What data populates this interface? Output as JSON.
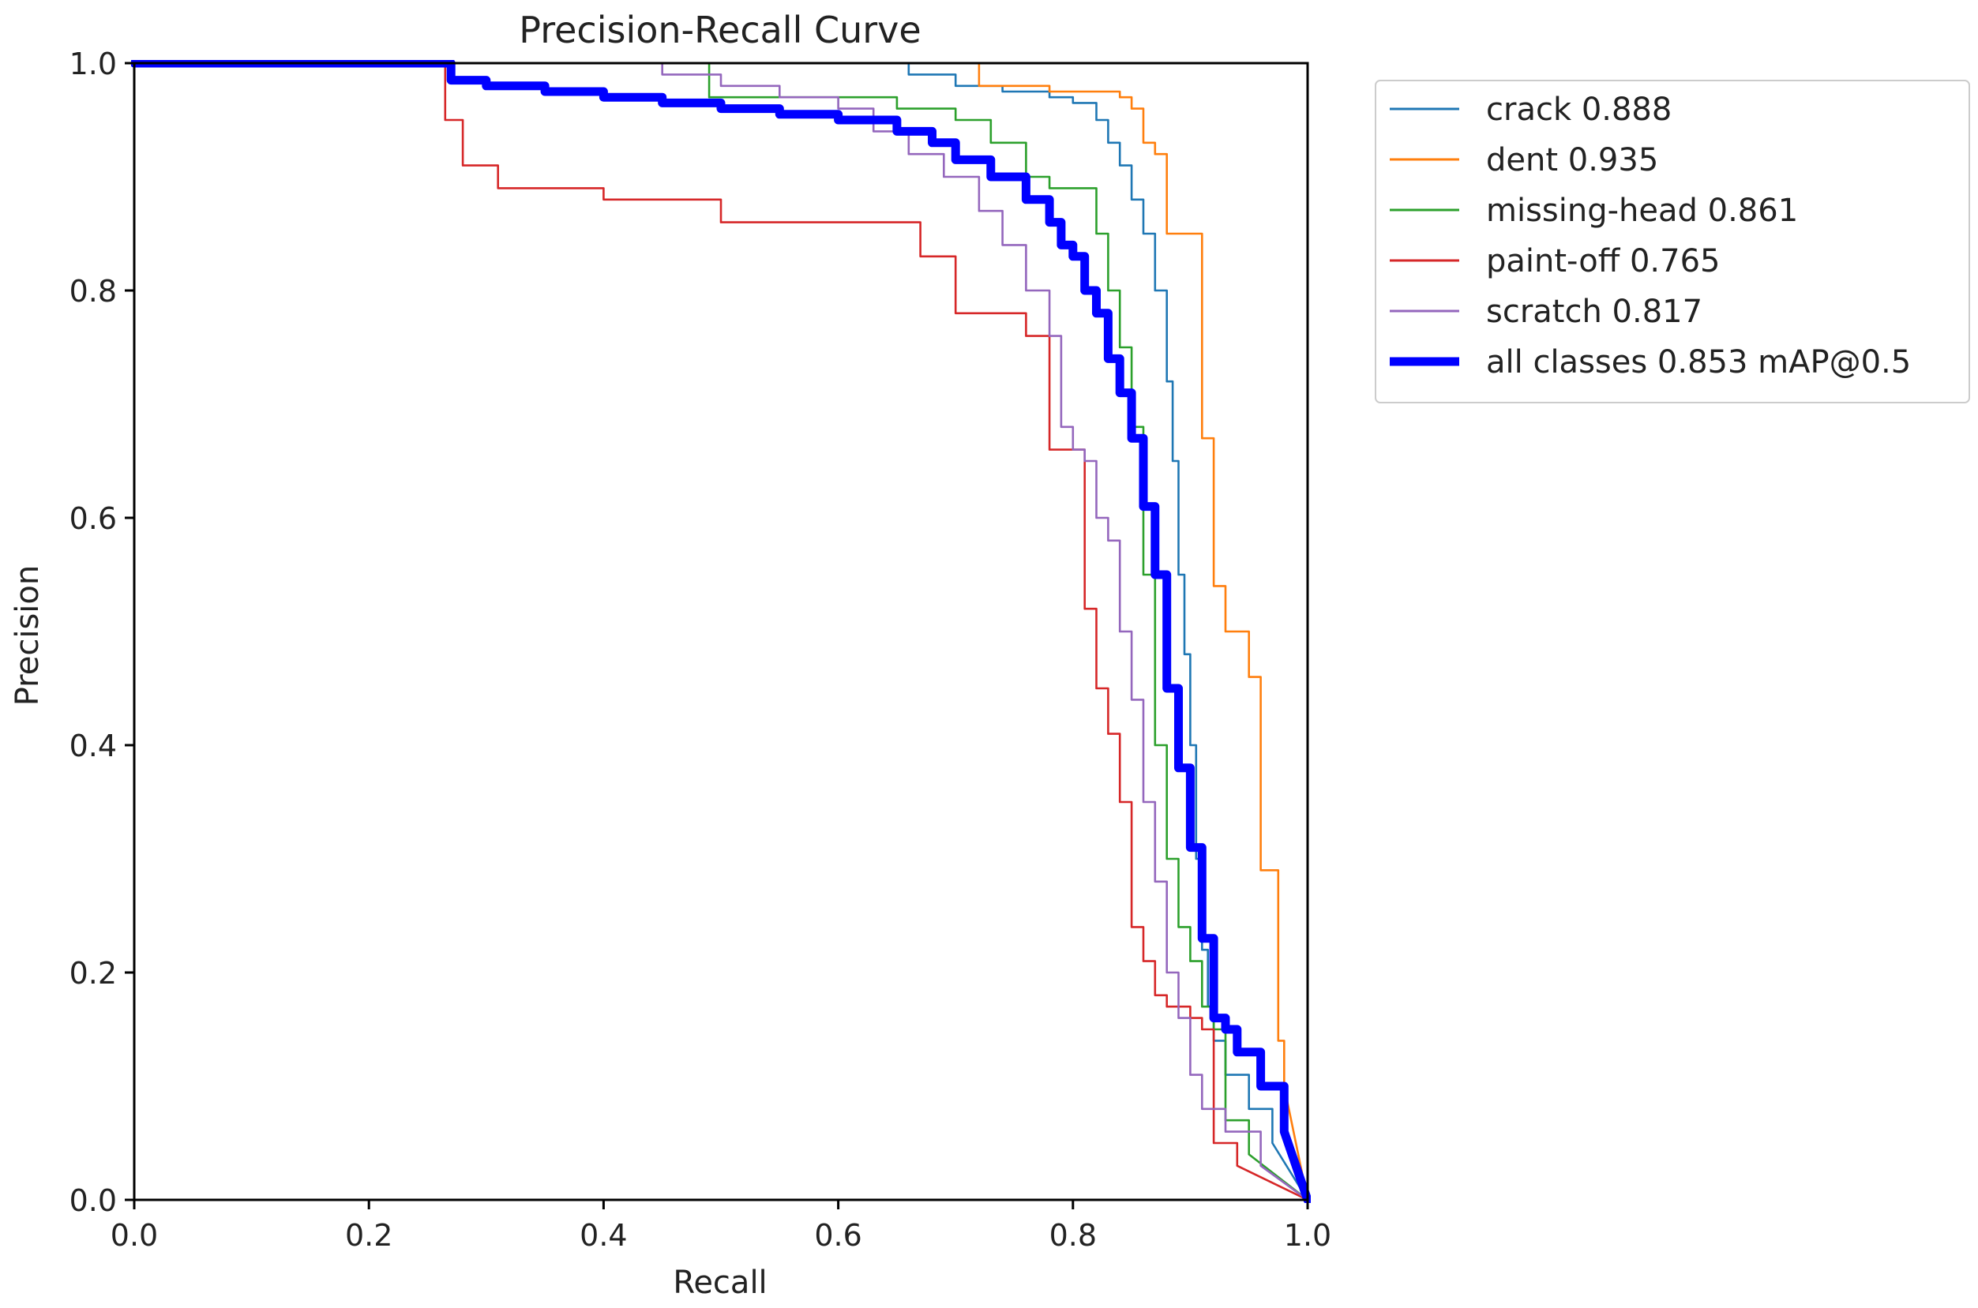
{
  "chart_data": {
    "type": "line",
    "title": "Precision-Recall Curve",
    "xlabel": "Recall",
    "ylabel": "Precision",
    "xlim": [
      0,
      1
    ],
    "ylim": [
      0,
      1
    ],
    "xticks": [
      "0.0",
      "0.2",
      "0.4",
      "0.6",
      "0.8",
      "1.0"
    ],
    "yticks": [
      "0.0",
      "0.2",
      "0.4",
      "0.6",
      "0.8",
      "1.0"
    ],
    "grid": false,
    "legend_position": "outside-top-right",
    "series": [
      {
        "name": "crack",
        "score": "0.888",
        "legend_label": "crack 0.888",
        "color": "#1f77b4",
        "bold": false,
        "x": [
          0.0,
          0.2,
          0.4,
          0.6,
          0.66,
          0.7,
          0.74,
          0.78,
          0.8,
          0.82,
          0.83,
          0.84,
          0.85,
          0.86,
          0.87,
          0.88,
          0.885,
          0.89,
          0.895,
          0.9,
          0.905,
          0.91,
          0.915,
          0.92,
          0.93,
          0.95,
          0.97,
          1.0
        ],
        "y": [
          1.0,
          1.0,
          1.0,
          1.0,
          0.99,
          0.98,
          0.975,
          0.97,
          0.965,
          0.95,
          0.93,
          0.91,
          0.88,
          0.85,
          0.8,
          0.72,
          0.65,
          0.55,
          0.48,
          0.4,
          0.3,
          0.22,
          0.17,
          0.14,
          0.11,
          0.08,
          0.05,
          0.0
        ]
      },
      {
        "name": "dent",
        "score": "0.935",
        "legend_label": "dent 0.935",
        "color": "#ff7f0e",
        "bold": false,
        "x": [
          0.0,
          0.2,
          0.4,
          0.6,
          0.66,
          0.72,
          0.78,
          0.84,
          0.85,
          0.86,
          0.87,
          0.88,
          0.9,
          0.91,
          0.92,
          0.93,
          0.94,
          0.95,
          0.96,
          0.97,
          0.975,
          0.98,
          1.0
        ],
        "y": [
          1.0,
          1.0,
          1.0,
          1.0,
          1.0,
          0.98,
          0.975,
          0.97,
          0.96,
          0.93,
          0.92,
          0.85,
          0.85,
          0.67,
          0.54,
          0.5,
          0.5,
          0.46,
          0.29,
          0.29,
          0.14,
          0.1,
          0.0
        ]
      },
      {
        "name": "missing-head",
        "score": "0.861",
        "legend_label": "missing-head 0.861",
        "color": "#2ca02c",
        "bold": false,
        "x": [
          0.0,
          0.2,
          0.4,
          0.48,
          0.49,
          0.55,
          0.6,
          0.65,
          0.7,
          0.73,
          0.76,
          0.78,
          0.8,
          0.82,
          0.83,
          0.84,
          0.85,
          0.86,
          0.87,
          0.88,
          0.89,
          0.9,
          0.91,
          0.92,
          0.93,
          0.95,
          1.0
        ],
        "y": [
          1.0,
          1.0,
          1.0,
          1.0,
          0.97,
          0.97,
          0.97,
          0.96,
          0.95,
          0.93,
          0.9,
          0.89,
          0.89,
          0.85,
          0.8,
          0.75,
          0.68,
          0.55,
          0.4,
          0.3,
          0.24,
          0.21,
          0.17,
          0.15,
          0.07,
          0.04,
          0.0
        ]
      },
      {
        "name": "paint-off",
        "score": "0.765",
        "legend_label": "paint-off 0.765",
        "color": "#d62728",
        "bold": false,
        "x": [
          0.0,
          0.2,
          0.26,
          0.265,
          0.28,
          0.31,
          0.36,
          0.4,
          0.47,
          0.5,
          0.6,
          0.67,
          0.7,
          0.73,
          0.76,
          0.78,
          0.79,
          0.81,
          0.82,
          0.83,
          0.84,
          0.85,
          0.86,
          0.87,
          0.88,
          0.89,
          0.9,
          0.91,
          0.92,
          0.94,
          1.0
        ],
        "y": [
          1.0,
          1.0,
          1.0,
          0.95,
          0.91,
          0.89,
          0.89,
          0.88,
          0.88,
          0.86,
          0.86,
          0.83,
          0.78,
          0.78,
          0.76,
          0.66,
          0.66,
          0.52,
          0.45,
          0.41,
          0.35,
          0.24,
          0.21,
          0.18,
          0.17,
          0.17,
          0.16,
          0.15,
          0.05,
          0.03,
          0.0
        ]
      },
      {
        "name": "scratch",
        "score": "0.817",
        "legend_label": "scratch 0.817",
        "color": "#9467bd",
        "bold": false,
        "x": [
          0.0,
          0.2,
          0.4,
          0.45,
          0.5,
          0.55,
          0.6,
          0.63,
          0.66,
          0.69,
          0.72,
          0.74,
          0.76,
          0.78,
          0.79,
          0.8,
          0.81,
          0.82,
          0.83,
          0.84,
          0.85,
          0.86,
          0.87,
          0.88,
          0.89,
          0.9,
          0.91,
          0.93,
          0.96,
          1.0
        ],
        "y": [
          1.0,
          1.0,
          1.0,
          0.99,
          0.98,
          0.97,
          0.96,
          0.94,
          0.92,
          0.9,
          0.87,
          0.84,
          0.8,
          0.76,
          0.68,
          0.66,
          0.65,
          0.6,
          0.58,
          0.5,
          0.44,
          0.35,
          0.28,
          0.2,
          0.16,
          0.11,
          0.08,
          0.06,
          0.03,
          0.0
        ]
      },
      {
        "name": "all classes",
        "score": "0.853 mAP@0.5",
        "legend_label": "all classes 0.853 mAP@0.5",
        "color": "#0000ff",
        "bold": true,
        "x": [
          0.0,
          0.2,
          0.26,
          0.27,
          0.3,
          0.35,
          0.4,
          0.45,
          0.5,
          0.55,
          0.6,
          0.65,
          0.68,
          0.7,
          0.73,
          0.76,
          0.78,
          0.79,
          0.8,
          0.81,
          0.82,
          0.83,
          0.84,
          0.85,
          0.86,
          0.87,
          0.88,
          0.89,
          0.9,
          0.91,
          0.92,
          0.93,
          0.94,
          0.96,
          0.98,
          1.0
        ],
        "y": [
          1.0,
          1.0,
          1.0,
          0.985,
          0.98,
          0.975,
          0.97,
          0.965,
          0.96,
          0.955,
          0.95,
          0.94,
          0.93,
          0.915,
          0.9,
          0.88,
          0.86,
          0.84,
          0.83,
          0.8,
          0.78,
          0.74,
          0.71,
          0.67,
          0.61,
          0.55,
          0.45,
          0.38,
          0.31,
          0.23,
          0.16,
          0.15,
          0.13,
          0.1,
          0.06,
          0.0
        ]
      }
    ]
  }
}
